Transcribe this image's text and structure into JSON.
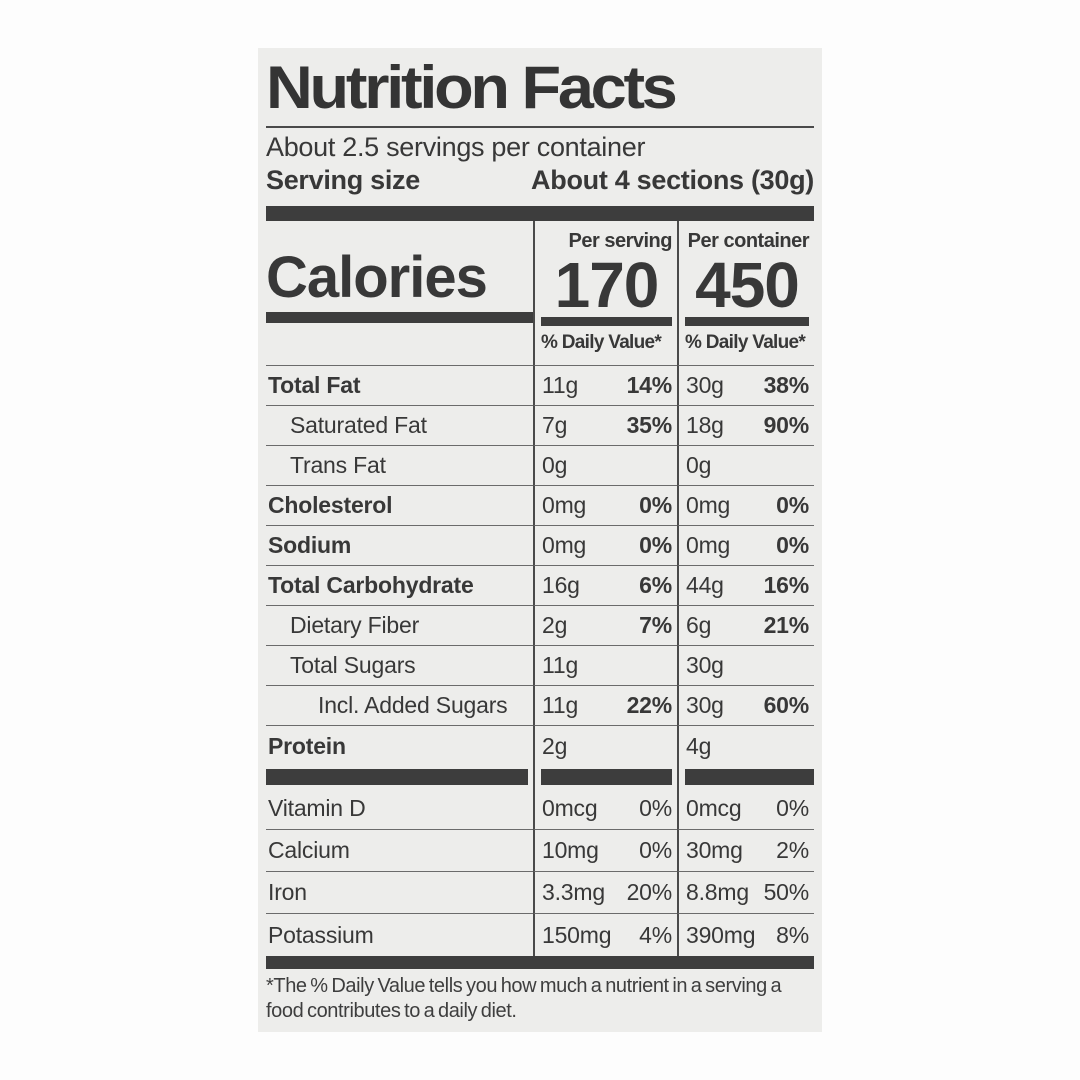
{
  "header": {
    "title": "Nutrition Facts",
    "servings_per_container": "About 2.5 servings per container",
    "serving_size_label": "Serving size",
    "serving_size_value": "About 4 sections (30g)"
  },
  "calories": {
    "label": "Calories",
    "per_serving": {
      "header": "Per serving",
      "value": "170",
      "daily_value_header": "% Daily Value*"
    },
    "per_container": {
      "header": "Per container",
      "value": "450",
      "daily_value_header": "% Daily Value*"
    }
  },
  "nutrients": [
    {
      "name": "Total Fat",
      "serving_amount": "11g",
      "serving_dv": "14%",
      "container_amount": "30g",
      "container_dv": "38%"
    },
    {
      "name": "Saturated Fat",
      "serving_amount": "7g",
      "serving_dv": "35%",
      "container_amount": "18g",
      "container_dv": "90%"
    },
    {
      "name": "Trans Fat",
      "serving_amount": "0g",
      "serving_dv": "",
      "container_amount": "0g",
      "container_dv": ""
    },
    {
      "name": "Cholesterol",
      "serving_amount": "0mg",
      "serving_dv": "0%",
      "container_amount": "0mg",
      "container_dv": "0%"
    },
    {
      "name": "Sodium",
      "serving_amount": "0mg",
      "serving_dv": "0%",
      "container_amount": "0mg",
      "container_dv": "0%"
    },
    {
      "name": "Total Carbohydrate",
      "serving_amount": "16g",
      "serving_dv": "6%",
      "container_amount": "44g",
      "container_dv": "16%"
    },
    {
      "name": "Dietary Fiber",
      "serving_amount": "2g",
      "serving_dv": "7%",
      "container_amount": "6g",
      "container_dv": "21%"
    },
    {
      "name": "Total Sugars",
      "serving_amount": "11g",
      "serving_dv": "",
      "container_amount": "30g",
      "container_dv": ""
    },
    {
      "name": "Incl. Added Sugars",
      "serving_amount": "11g",
      "serving_dv": "22%",
      "container_amount": "30g",
      "container_dv": "60%"
    },
    {
      "name": "Protein",
      "serving_amount": "2g",
      "serving_dv": "",
      "container_amount": "4g",
      "container_dv": ""
    },
    {
      "name": "Vitamin D",
      "serving_amount": "0mcg",
      "serving_dv": "0%",
      "container_amount": "0mcg",
      "container_dv": "0%"
    },
    {
      "name": "Calcium",
      "serving_amount": "10mg",
      "serving_dv": "0%",
      "container_amount": "30mg",
      "container_dv": "2%"
    },
    {
      "name": "Iron",
      "serving_amount": "3.3mg",
      "serving_dv": "20%",
      "container_amount": "8.8mg",
      "container_dv": "50%"
    },
    {
      "name": "Potassium",
      "serving_amount": "150mg",
      "serving_dv": "4%",
      "container_amount": "390mg",
      "container_dv": "8%"
    }
  ],
  "footnote": "*The % Daily Value tells you how much a nutrient in a serving a food contributes to a daily diet.",
  "colors": {
    "label_background": "#ededeb",
    "text": "#383838",
    "bar": "#3d3d3d",
    "divider": "#4a4a4a",
    "hairline": "#6b6b6b"
  }
}
